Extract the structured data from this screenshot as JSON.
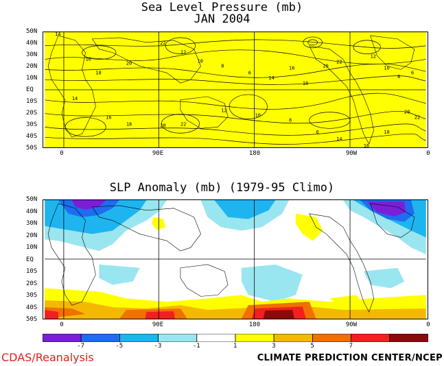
{
  "top_panel": {
    "title_line1": "Sea Level Pressure (mb)",
    "title_line2": "JAN 2004",
    "fill_color": "#ffff00",
    "contour_labels": [
      "14",
      "16",
      "18",
      "20",
      "22",
      "12",
      "10",
      "8",
      "6"
    ]
  },
  "bottom_panel": {
    "title": "SLP Anomaly (mb) (1979-95 Climo)"
  },
  "lat_labels": [
    "50N",
    "40N",
    "30N",
    "20N",
    "10N",
    "EQ",
    "10S",
    "20S",
    "30S",
    "40S",
    "50S"
  ],
  "lon_labels": [
    "0",
    "90E",
    "180",
    "90W",
    "0"
  ],
  "colorbar": {
    "colors": [
      "#7a1fd6",
      "#1e6cf0",
      "#1eb4f0",
      "#9ae6f0",
      "#ffffff",
      "#ffff00",
      "#f5b800",
      "#f07000",
      "#f02020",
      "#8c0a0a"
    ],
    "labels": [
      "-7",
      "-5",
      "-3",
      "-1",
      "1",
      "3",
      "5",
      "7"
    ]
  },
  "footer": {
    "left": "CDAS/Reanalysis",
    "right": "CLIMATE PREDICTION CENTER/NCEP"
  }
}
